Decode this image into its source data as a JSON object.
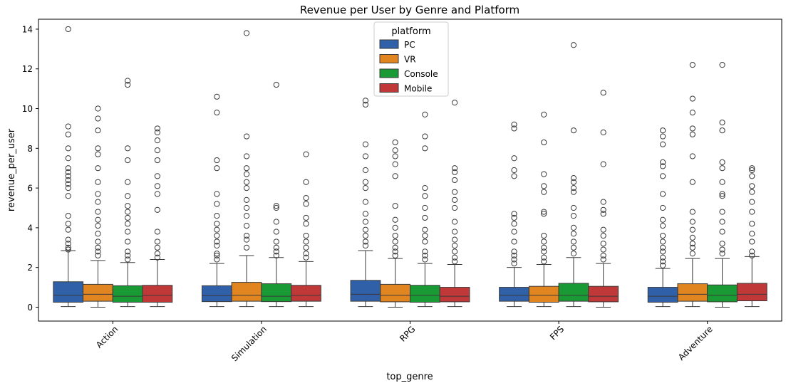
{
  "chart_data": {
    "type": "box",
    "title": "Revenue per User by Genre and Platform",
    "xlabel": "top_genre",
    "ylabel": "revenue_per_user",
    "ylim": [
      -0.7,
      14.5
    ],
    "yticks": [
      0,
      2,
      4,
      6,
      8,
      10,
      12,
      14
    ],
    "grid": false,
    "legend": {
      "title": "platform",
      "placement": "top-center"
    },
    "categories": [
      "Action",
      "Simulation",
      "RPG",
      "FPS",
      "Adventure"
    ],
    "series": [
      {
        "name": "PC",
        "color": "#3060a8",
        "boxes": [
          {
            "min": 0.03,
            "q1": 0.25,
            "median": 0.6,
            "q3": 1.28,
            "max": 2.85,
            "outliers": [
              2.9,
              3.0,
              3.2,
              3.4,
              3.9,
              4.2,
              4.6,
              5.6,
              6.0,
              6.2,
              6.4,
              6.6,
              6.8,
              7.0,
              7.5,
              8.0,
              8.7,
              9.1,
              14.0
            ]
          },
          {
            "min": 0.03,
            "q1": 0.28,
            "median": 0.58,
            "q3": 1.08,
            "max": 2.2,
            "outliers": [
              2.4,
              2.6,
              2.7,
              3.1,
              3.3,
              3.6,
              3.9,
              4.2,
              4.6,
              5.2,
              5.7,
              7.0,
              7.4,
              9.8,
              10.6
            ]
          },
          {
            "min": 0.03,
            "q1": 0.3,
            "median": 0.65,
            "q3": 1.35,
            "max": 2.85,
            "outliers": [
              3.1,
              3.3,
              3.6,
              3.9,
              4.3,
              4.7,
              5.3,
              6.0,
              6.3,
              6.9,
              7.6,
              8.2,
              10.2,
              10.4
            ]
          },
          {
            "min": 0.03,
            "q1": 0.3,
            "median": 0.6,
            "q3": 1.0,
            "max": 2.0,
            "outliers": [
              2.2,
              2.4,
              2.6,
              2.8,
              3.3,
              3.8,
              4.2,
              4.5,
              4.7,
              6.6,
              6.9,
              7.5,
              9.0,
              9.2
            ]
          },
          {
            "min": 0.03,
            "q1": 0.25,
            "median": 0.55,
            "q3": 1.0,
            "max": 1.95,
            "outliers": [
              2.1,
              2.3,
              2.5,
              2.8,
              3.0,
              3.3,
              3.6,
              4.1,
              4.4,
              5.0,
              5.7,
              6.6,
              7.1,
              7.3,
              8.2,
              8.6,
              8.9
            ]
          }
        ]
      },
      {
        "name": "VR",
        "color": "#e08520",
        "boxes": [
          {
            "min": 0.0,
            "q1": 0.3,
            "median": 0.65,
            "q3": 1.15,
            "max": 2.35,
            "outliers": [
              2.6,
              2.8,
              3.0,
              3.3,
              3.7,
              4.1,
              4.4,
              4.8,
              5.3,
              5.7,
              6.3,
              7.0,
              7.7,
              8.0,
              8.9,
              9.5,
              10.0
            ]
          },
          {
            "min": 0.03,
            "q1": 0.3,
            "median": 0.6,
            "q3": 1.25,
            "max": 2.6,
            "outliers": [
              3.0,
              3.4,
              3.6,
              4.1,
              4.6,
              5.0,
              5.4,
              6.0,
              6.3,
              6.7,
              7.0,
              7.6,
              8.6,
              13.8
            ]
          },
          {
            "min": 0.0,
            "q1": 0.27,
            "median": 0.6,
            "q3": 1.15,
            "max": 2.45,
            "outliers": [
              2.6,
              2.8,
              3.0,
              3.3,
              3.6,
              4.0,
              4.4,
              5.1,
              6.6,
              7.2,
              7.6,
              7.9,
              8.3
            ]
          },
          {
            "min": 0.03,
            "q1": 0.25,
            "median": 0.6,
            "q3": 1.05,
            "max": 2.15,
            "outliers": [
              2.3,
              2.5,
              2.8,
              3.0,
              3.3,
              3.6,
              4.7,
              4.8,
              5.8,
              6.1,
              6.7,
              8.3,
              9.7
            ]
          },
          {
            "min": 0.03,
            "q1": 0.3,
            "median": 0.65,
            "q3": 1.18,
            "max": 2.45,
            "outliers": [
              2.7,
              3.0,
              3.2,
              3.5,
              3.9,
              4.3,
              4.8,
              6.3,
              7.6,
              8.7,
              9.0,
              9.8,
              10.5,
              12.2
            ]
          }
        ]
      },
      {
        "name": "Console",
        "color": "#1a9a35",
        "boxes": [
          {
            "min": 0.03,
            "q1": 0.25,
            "median": 0.55,
            "q3": 1.08,
            "max": 2.25,
            "outliers": [
              2.4,
              2.6,
              2.8,
              3.3,
              3.8,
              4.2,
              4.5,
              4.8,
              5.1,
              5.6,
              6.3,
              7.4,
              8.0,
              11.2,
              11.4
            ]
          },
          {
            "min": 0.03,
            "q1": 0.28,
            "median": 0.55,
            "q3": 1.18,
            "max": 2.5,
            "outliers": [
              2.6,
              2.8,
              3.0,
              3.3,
              3.8,
              4.3,
              5.0,
              5.1,
              11.2
            ]
          },
          {
            "min": 0.03,
            "q1": 0.25,
            "median": 0.6,
            "q3": 1.1,
            "max": 2.2,
            "outliers": [
              2.4,
              2.6,
              2.8,
              3.3,
              3.6,
              3.9,
              4.5,
              5.0,
              5.6,
              6.0,
              8.0,
              8.6,
              9.7
            ]
          },
          {
            "min": 0.03,
            "q1": 0.3,
            "median": 0.6,
            "q3": 1.2,
            "max": 2.5,
            "outliers": [
              2.7,
              3.0,
              3.3,
              3.7,
              4.0,
              4.6,
              5.0,
              5.8,
              6.0,
              6.3,
              6.5,
              8.9,
              13.2
            ]
          },
          {
            "min": 0.0,
            "q1": 0.27,
            "median": 0.6,
            "q3": 1.12,
            "max": 2.45,
            "outliers": [
              2.7,
              2.9,
              3.2,
              3.8,
              4.3,
              4.8,
              5.6,
              5.7,
              6.3,
              7.0,
              7.3,
              8.9,
              9.3,
              12.2
            ]
          }
        ]
      },
      {
        "name": "Mobile",
        "color": "#c03838",
        "boxes": [
          {
            "min": 0.03,
            "q1": 0.25,
            "median": 0.6,
            "q3": 1.1,
            "max": 2.4,
            "outliers": [
              2.5,
              2.7,
              3.0,
              3.3,
              3.8,
              4.9,
              5.7,
              6.1,
              6.6,
              7.4,
              7.9,
              8.4,
              8.8,
              9.0
            ]
          },
          {
            "min": 0.03,
            "q1": 0.3,
            "median": 0.6,
            "q3": 1.1,
            "max": 2.3,
            "outliers": [
              2.5,
              2.7,
              3.0,
              3.3,
              3.6,
              4.2,
              4.5,
              5.2,
              5.5,
              6.3,
              7.7
            ]
          },
          {
            "min": 0.03,
            "q1": 0.27,
            "median": 0.55,
            "q3": 1.0,
            "max": 2.15,
            "outliers": [
              2.3,
              2.5,
              2.8,
              3.1,
              3.4,
              3.8,
              4.3,
              5.0,
              5.4,
              5.8,
              6.4,
              6.8,
              7.0,
              10.3
            ]
          },
          {
            "min": 0.0,
            "q1": 0.27,
            "median": 0.55,
            "q3": 1.05,
            "max": 2.2,
            "outliers": [
              2.4,
              2.6,
              2.9,
              3.2,
              3.6,
              3.9,
              4.7,
              4.9,
              5.3,
              7.2,
              8.8,
              10.8
            ]
          },
          {
            "min": 0.03,
            "q1": 0.32,
            "median": 0.65,
            "q3": 1.2,
            "max": 2.55,
            "outliers": [
              2.6,
              2.8,
              3.3,
              3.7,
              4.2,
              4.8,
              5.3,
              5.8,
              6.1,
              6.6,
              6.9,
              7.0
            ]
          }
        ]
      }
    ]
  }
}
